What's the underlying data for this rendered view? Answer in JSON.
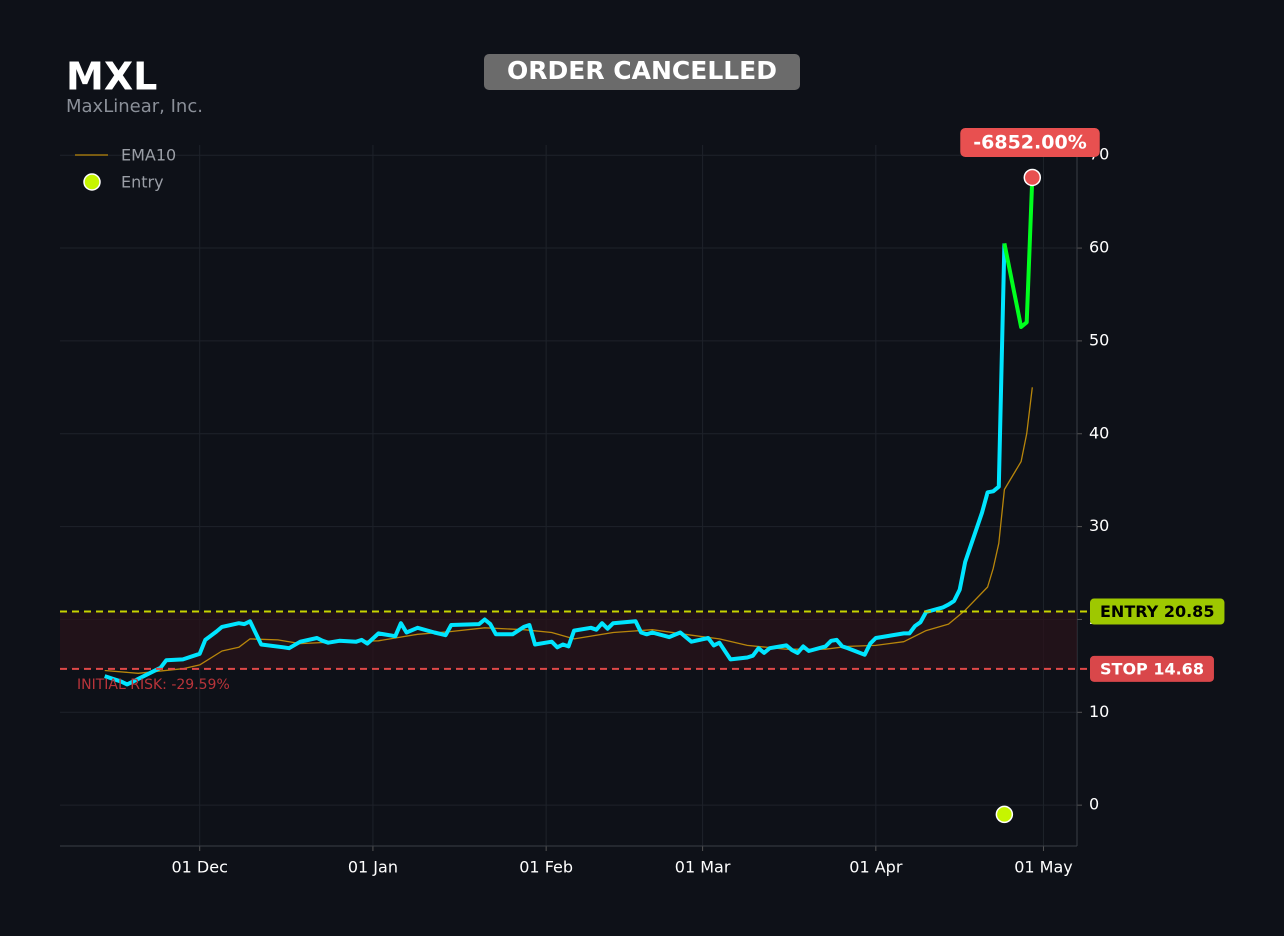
{
  "chart_data": {
    "type": "line",
    "title": "MXL",
    "subtitle": "MaxLinear, Inc.",
    "status": "ORDER CANCELLED",
    "xlim": [
      "11-06",
      "05-07"
    ],
    "xticks": [
      {
        "value": "12-01",
        "label": "01 Dec"
      },
      {
        "value": "01-01",
        "label": "01 Jan"
      },
      {
        "value": "02-01",
        "label": "01 Feb"
      },
      {
        "value": "03-01",
        "label": "01 Mar"
      },
      {
        "value": "04-01",
        "label": "01 Apr"
      },
      {
        "value": "05-01",
        "label": "01 May"
      }
    ],
    "ylim": [
      -4.4,
      71.1
    ],
    "yticks": [
      0,
      10,
      20,
      30,
      40,
      50,
      60,
      70
    ],
    "grid": true,
    "legend": "upper left",
    "series": [
      {
        "color": "#00e5ff",
        "x": [
          "11-14",
          "11-17",
          "11-18",
          "11-20",
          "11-24",
          "11-25",
          "11-28",
          "12-01",
          "12-02",
          "12-04",
          "12-05",
          "12-08",
          "12-09",
          "12-10",
          "12-12",
          "12-16",
          "12-17",
          "12-19",
          "12-22",
          "12-23",
          "12-24",
          "12-26",
          "12-29",
          "12-30",
          "12-31",
          "01-02",
          "01-05",
          "01-06",
          "01-07",
          "01-09",
          "01-12",
          "01-14",
          "01-15",
          "01-20",
          "01-21",
          "01-22",
          "01-23",
          "01-26",
          "01-28",
          "01-29",
          "01-30",
          "02-02",
          "02-03",
          "02-04",
          "02-05",
          "02-06",
          "02-09",
          "02-10",
          "02-11",
          "02-12",
          "02-13",
          "02-17",
          "02-18",
          "02-19",
          "02-20",
          "02-23",
          "02-25",
          "02-27",
          "03-02",
          "03-03",
          "03-04",
          "03-06",
          "03-09",
          "03-10",
          "03-11",
          "03-12",
          "03-13",
          "03-16",
          "03-17",
          "03-18",
          "03-19",
          "03-20",
          "03-23",
          "03-24",
          "03-25",
          "03-26",
          "03-27",
          "03-30",
          "03-31",
          "04-01",
          "04-06",
          "04-07",
          "04-08",
          "04-09",
          "04-10",
          "04-13",
          "04-14",
          "04-15",
          "04-16",
          "04-17",
          "04-20",
          "04-21",
          "04-22",
          "04-23",
          "04-24"
        ],
        "values": [
          13.9,
          13.3,
          13.0,
          13.6,
          14.8,
          15.6,
          15.7,
          16.3,
          17.8,
          18.7,
          19.2,
          19.6,
          19.5,
          19.8,
          17.3,
          17.0,
          16.9,
          17.6,
          18.0,
          17.7,
          17.5,
          17.7,
          17.6,
          17.8,
          17.4,
          18.5,
          18.2,
          19.6,
          18.6,
          19.1,
          18.6,
          18.3,
          19.4,
          19.5,
          20.0,
          19.5,
          18.4,
          18.4,
          19.2,
          19.4,
          17.3,
          17.6,
          17.0,
          17.3,
          17.1,
          18.8,
          19.1,
          18.9,
          19.6,
          19.0,
          19.6,
          19.8,
          18.6,
          18.4,
          18.6,
          18.1,
          18.6,
          17.6,
          18.0,
          17.2,
          17.5,
          15.7,
          15.9,
          16.1,
          16.9,
          16.4,
          16.9,
          17.2,
          16.7,
          16.4,
          17.1,
          16.6,
          17.1,
          17.7,
          17.8,
          17.1,
          16.9,
          16.2,
          17.4,
          18.0,
          18.5,
          18.5,
          19.3,
          19.7,
          20.8,
          21.3,
          21.6,
          22.0,
          23.2,
          26.2,
          31.5,
          33.7,
          33.8,
          34.3,
          60.5
        ]
      },
      {
        "color": "#00ff1e",
        "x": [
          "04-24",
          "04-27",
          "04-28",
          "04-29"
        ],
        "values": [
          60.5,
          51.5,
          52.0,
          67.6
        ]
      },
      {
        "name": "EMA10",
        "color": "#b8860b",
        "x": [
          "11-14",
          "11-20",
          "11-28",
          "12-01",
          "12-05",
          "12-08",
          "12-10",
          "12-15",
          "12-19",
          "12-26",
          "01-02",
          "01-09",
          "01-15",
          "01-21",
          "01-28",
          "02-02",
          "02-06",
          "02-13",
          "02-20",
          "02-27",
          "03-04",
          "03-09",
          "03-16",
          "03-23",
          "03-27",
          "04-01",
          "04-06",
          "04-10",
          "04-14",
          "04-17",
          "04-21",
          "04-22",
          "04-23",
          "04-24",
          "04-27",
          "04-28",
          "04-29"
        ],
        "values": [
          14.5,
          14.2,
          14.7,
          15.1,
          16.6,
          17.0,
          17.9,
          17.8,
          17.4,
          17.6,
          17.7,
          18.4,
          18.7,
          19.1,
          18.9,
          18.6,
          17.9,
          18.6,
          18.9,
          18.3,
          17.9,
          17.2,
          16.8,
          16.8,
          17.1,
          17.2,
          17.6,
          18.8,
          19.5,
          21.0,
          23.5,
          25.5,
          28.2,
          34.0,
          37.0,
          40.0,
          45.0
        ]
      }
    ],
    "entry_marker": {
      "name": "Entry",
      "x": "04-24",
      "value": -1.0,
      "color": "#c6f500"
    },
    "exit_marker": {
      "x": "04-29",
      "value": 67.6,
      "color": "#e85050",
      "label": "-6852.00%"
    },
    "levels": [
      {
        "value": 20.85,
        "label": "ENTRY 20.85",
        "color": "#c8d400",
        "badge": "#9ec800",
        "text_color": "#000000"
      },
      {
        "value": 14.68,
        "label": "STOP 14.68",
        "color": "#e04848",
        "badge": "#d9474a",
        "text_color": "#ffffff"
      }
    ],
    "risk_label": "INITIAL RISK: -29.59%"
  }
}
